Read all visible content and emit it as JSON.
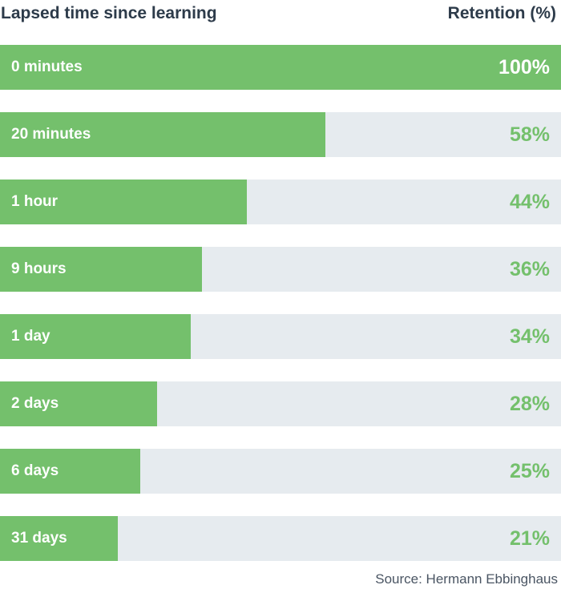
{
  "header": {
    "left_title": "Lapsed time since learning",
    "right_title": "Retention (%)"
  },
  "chart_data": {
    "type": "bar",
    "orientation": "horizontal",
    "categories": [
      "0 minutes",
      "20 minutes",
      "1 hour",
      "9 hours",
      "1 day",
      "2 days",
      "6 days",
      "31 days"
    ],
    "values": [
      100,
      58,
      44,
      36,
      34,
      28,
      25,
      21
    ],
    "value_labels": [
      "100%",
      "58%",
      "44%",
      "36%",
      "34%",
      "28%",
      "25%",
      "21%"
    ],
    "xlim": [
      0,
      100
    ],
    "grid": false,
    "legend": "none"
  },
  "colors": {
    "bar_fill": "#74c06c",
    "track": "#e6ebef",
    "header_text": "#2d3b4a",
    "source_text": "#4a5563"
  },
  "source": "Source: Hermann Ebbinghaus"
}
